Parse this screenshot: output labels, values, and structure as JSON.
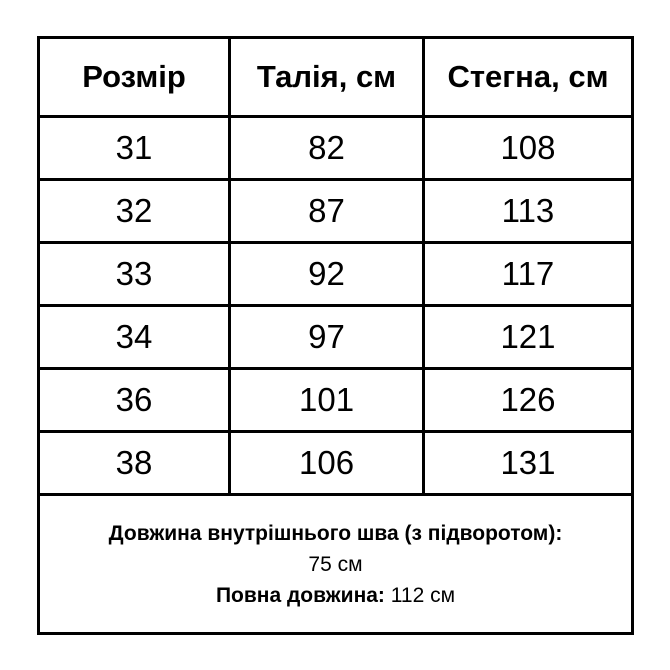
{
  "table": {
    "headers": [
      "Розмір",
      "Талія, см",
      "Стегна, см"
    ],
    "rows": [
      [
        "31",
        "82",
        "108"
      ],
      [
        "32",
        "87",
        "113"
      ],
      [
        "33",
        "92",
        "117"
      ],
      [
        "34",
        "97",
        "121"
      ],
      [
        "36",
        "101",
        "126"
      ],
      [
        "38",
        "106",
        "131"
      ]
    ]
  },
  "footer": {
    "inseam_label": "Довжина внутрішнього шва (з підворотом):",
    "inseam_value": "75 см",
    "full_length_label": "Повна довжина:",
    "full_length_value": "112 см"
  }
}
